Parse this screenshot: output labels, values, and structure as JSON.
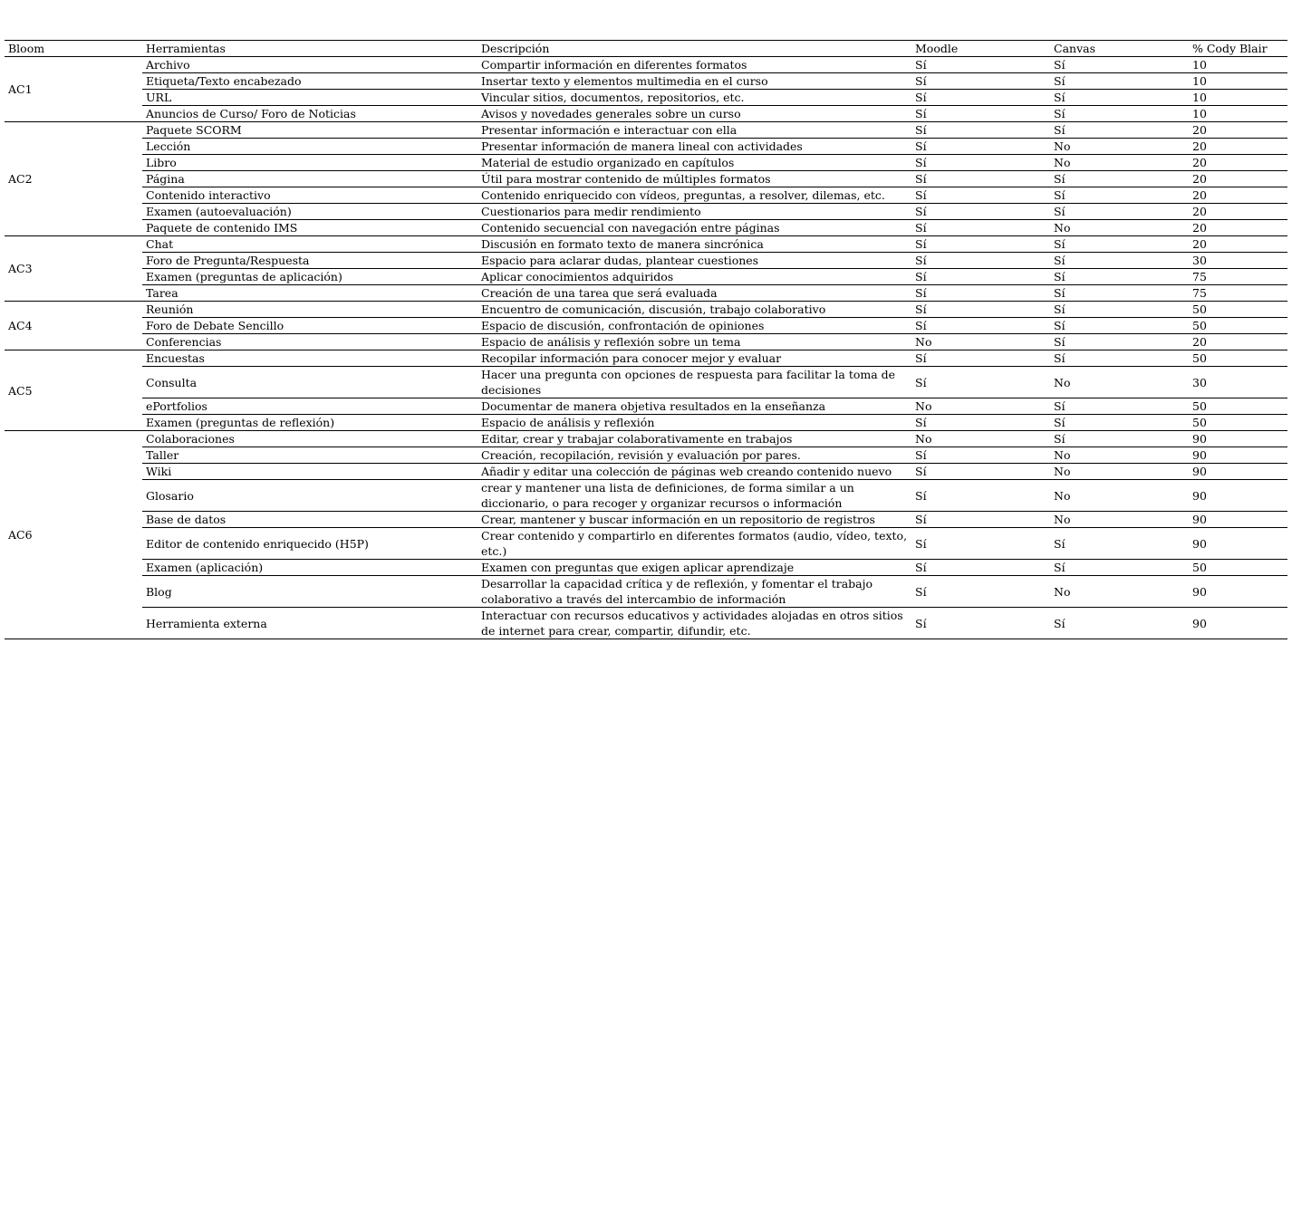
{
  "headers": [
    "Bloom",
    "Herramientas",
    "Descripción",
    "Moodle",
    "Canvas",
    "% Cody Blair"
  ],
  "groups": [
    {
      "bloom": "AC1",
      "rows": [
        [
          "Archivo",
          "Compartir información en diferentes formatos",
          "Sí",
          "Sí",
          "10"
        ],
        [
          "Etiqueta/Texto encabezado",
          "Insertar texto y elementos multimedia en el curso",
          "Sí",
          "Sí",
          "10"
        ],
        [
          "URL",
          "Vincular sitios, documentos, repositorios, etc.",
          "Sí",
          "Sí",
          "10"
        ],
        [
          "Anuncios de Curso/ Foro de Noticias",
          "Avisos y novedades generales sobre un curso",
          "Sí",
          "Sí",
          "10"
        ]
      ]
    },
    {
      "bloom": "AC2",
      "rows": [
        [
          "Paquete SCORM",
          "Presentar información e interactuar con ella",
          "Sí",
          "Sí",
          "20"
        ],
        [
          "Lección",
          "Presentar información de manera lineal con actividades",
          "Sí",
          "No",
          "20"
        ],
        [
          "Libro",
          "Material de estudio organizado en capítulos",
          "Sí",
          "No",
          "20"
        ],
        [
          "Página",
          "Útil para mostrar contenido de múltiples formatos",
          "Sí",
          "Sí",
          "20"
        ],
        [
          "Contenido interactivo",
          "Contenido enriquecido con vídeos, preguntas, a resolver, dilemas, etc.",
          "Sí",
          "Sí",
          "20"
        ],
        [
          "Examen (autoevaluación)",
          "Cuestionarios para medir rendimiento",
          "Sí",
          "Sí",
          "20"
        ],
        [
          "Paquete de contenido IMS",
          "Contenido secuencial con navegación entre páginas",
          "Sí",
          "No",
          "20"
        ]
      ]
    },
    {
      "bloom": "AC3",
      "rows": [
        [
          "Chat",
          "Discusión en formato texto de manera sincrónica",
          "Sí",
          "Sí",
          "20"
        ],
        [
          "Foro de Pregunta/Respuesta",
          "Espacio para aclarar dudas, plantear cuestiones",
          "Sí",
          "Sí",
          "30"
        ],
        [
          "Examen (preguntas de aplicación)",
          "Aplicar conocimientos adquiridos",
          "Sí",
          "Sí",
          "75"
        ],
        [
          "Tarea",
          "Creación de una tarea que será evaluada",
          "Sí",
          "Sí",
          "75"
        ]
      ]
    },
    {
      "bloom": "AC4",
      "rows": [
        [
          "Reunión",
          "Encuentro de comunicación, discusión, trabajo colaborativo",
          "Sí",
          "Sí",
          "50"
        ],
        [
          "Foro de Debate Sencillo",
          "Espacio de discusión, confrontación de opiniones",
          "Sí",
          "Sí",
          "50"
        ],
        [
          "Conferencias",
          "Espacio de análisis y reflexión sobre un tema",
          "No",
          "Sí",
          "20"
        ]
      ]
    },
    {
      "bloom": "AC5",
      "rows": [
        [
          "Encuestas",
          "Recopilar información para conocer mejor y evaluar",
          "Sí",
          "Sí",
          "50"
        ],
        [
          "Consulta",
          "Hacer una pregunta con opciones de respuesta para facilitar la toma de decisiones",
          "Sí",
          "No",
          "30"
        ],
        [
          "ePortfolios",
          "Documentar de manera objetiva resultados en la enseñanza",
          "No",
          "Sí",
          "50"
        ],
        [
          "Examen (preguntas de reflexión)",
          "Espacio de análisis y reflexión",
          "Sí",
          "Sí",
          "50"
        ]
      ]
    },
    {
      "bloom": "AC6",
      "rows": [
        [
          "Colaboraciones",
          "Editar, crear y trabajar colaborativamente en trabajos",
          "No",
          "Sí",
          "90"
        ],
        [
          "Taller",
          "Creación, recopilación, revisión y evaluación por pares.",
          "Sí",
          "No",
          "90"
        ],
        [
          "Wiki",
          "Añadir y editar una colección de páginas web creando contenido nuevo",
          "Sí",
          "No",
          "90"
        ],
        [
          "Glosario",
          "crear y mantener una lista de definiciones, de forma similar a un diccionario, o para recoger y organizar recursos o información",
          "Sí",
          "No",
          "90"
        ],
        [
          "Base de datos",
          "Crear, mantener y buscar información en un repositorio de registros",
          "Sí",
          "No",
          "90"
        ],
        [
          "Editor de contenido enriquecido (H5P)",
          "Crear contenido y compartirlo en diferentes formatos (audio, vídeo, texto, etc.)",
          "Sí",
          "Sí",
          "90"
        ],
        [
          "Examen (aplicación)",
          "Examen con preguntas que exigen aplicar aprendizaje",
          "Sí",
          "Sí",
          "50"
        ],
        [
          "Blog",
          "Desarrollar la capacidad crítica y de reflexión, y fomentar el trabajo colaborativo a través del intercambio de información",
          "Sí",
          "No",
          "90"
        ],
        [
          "Herramienta externa",
          "Interactuar con recursos educativos y actividades alojadas en otros sitios de internet para crear, compartir, difundir, etc.",
          "Sí",
          "Sí",
          "90"
        ]
      ]
    }
  ]
}
